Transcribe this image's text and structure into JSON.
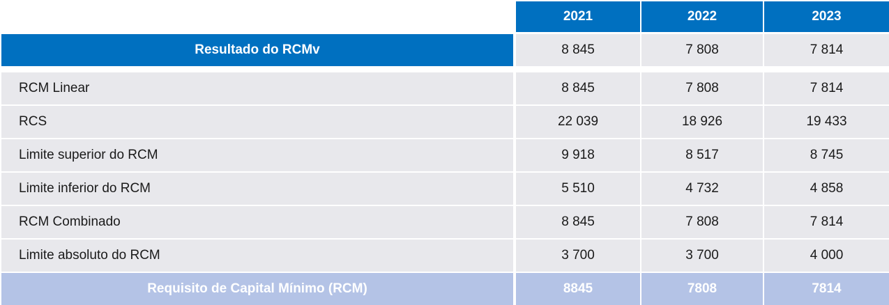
{
  "years": [
    "2021",
    "2022",
    "2023"
  ],
  "result_row": {
    "label": "Resultado do RCMv",
    "values": [
      "8 845",
      "7 808",
      "7 814"
    ]
  },
  "rows": [
    {
      "label": "RCM Linear",
      "values": [
        "8 845",
        "7 808",
        "7 814"
      ]
    },
    {
      "label": "RCS",
      "values": [
        "22 039",
        "18 926",
        "19 433"
      ]
    },
    {
      "label": "Limite superior do RCM",
      "values": [
        "9 918",
        "8 517",
        "8 745"
      ]
    },
    {
      "label": "Limite inferior do RCM",
      "values": [
        "5 510",
        "4 732",
        "4 858"
      ]
    },
    {
      "label": "RCM Combinado",
      "values": [
        "8 845",
        "7 808",
        "7 814"
      ]
    },
    {
      "label": "Limite absoluto do RCM",
      "values": [
        "3 700",
        "3 700",
        "4 000"
      ]
    }
  ],
  "total_row": {
    "label": "Requisito de Capital Mínimo (RCM)",
    "values": [
      "8845",
      "7808",
      "7814"
    ]
  },
  "colors": {
    "header_blue": "#0070c0",
    "row_gray": "#e8e8ec",
    "total_lavender": "#b4c3e6"
  }
}
